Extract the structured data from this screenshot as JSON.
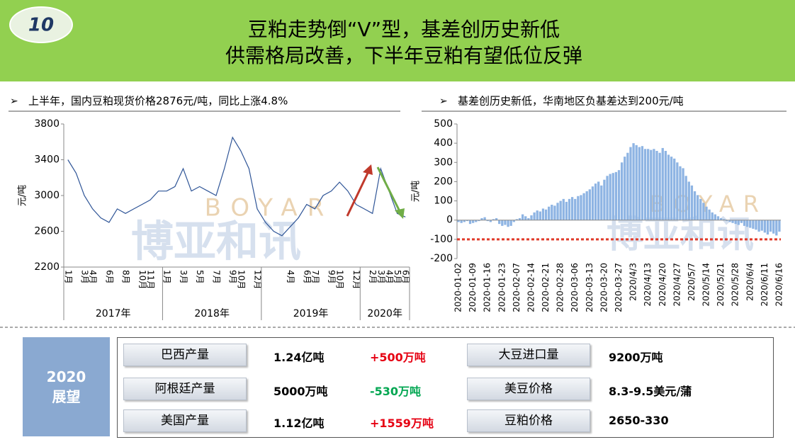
{
  "header": {
    "number": "10",
    "title_lines": [
      "豆粕走势倒“V”型，基差创历史新低",
      "供需格局改善，下半年豆粕有望低位反弹"
    ]
  },
  "watermark": {
    "name": "博亚和讯",
    "latin": "BOYAR"
  },
  "chart_data": [
    {
      "type": "line",
      "title": "上半年，国内豆粕现货价格2876元/吨，同比上涨4.8%",
      "y_label": "元/吨",
      "color": "#2f5597",
      "groups": [
        {
          "label": "2017年",
          "categories": [
            "1月",
            null,
            "3月",
            "4月",
            null,
            "6月",
            null,
            "8月",
            null,
            "10月",
            "11月",
            null
          ],
          "values": [
            3400,
            3250,
            3000,
            2850,
            2750,
            2700,
            2850,
            2800,
            2850,
            2900,
            2950,
            3050
          ]
        },
        {
          "label": "2018年",
          "categories": [
            "1月",
            null,
            "3月",
            null,
            "5月",
            null,
            "7月",
            null,
            "9月",
            "10月",
            null,
            "12月"
          ],
          "values": [
            3050,
            3100,
            3300,
            3050,
            3100,
            3050,
            3000,
            3300,
            3650,
            3500,
            3300,
            2850
          ]
        },
        {
          "label": "2019年",
          "categories": [
            null,
            null,
            null,
            "4月",
            null,
            "6月",
            "7月",
            null,
            "9月",
            "10月",
            null,
            "12月"
          ],
          "values": [
            2700,
            2600,
            2550,
            2650,
            2750,
            2900,
            2850,
            3000,
            3050,
            3150,
            3050,
            2900
          ]
        },
        {
          "label": "2020年",
          "categories": [
            null,
            "2月",
            "3月",
            "4月",
            "5月",
            "6月"
          ],
          "values": [
            2850,
            2800,
            3300,
            3050,
            2800,
            2760
          ]
        }
      ],
      "ylim": [
        2200,
        3800
      ],
      "yticks": [
        2200,
        2600,
        3000,
        3400,
        3800
      ]
    },
    {
      "type": "bar",
      "title": "基差创历史新低，华南地区负基差达到200元/吨",
      "y_label": "元/吨",
      "color": "#8eb4e3",
      "categories": [
        "2020-01-02",
        null,
        null,
        null,
        null,
        "2020-01-09",
        null,
        null,
        null,
        null,
        "2020-01-16",
        null,
        null,
        null,
        null,
        "2020-01-23",
        null,
        null,
        null,
        null,
        "2020-02-07",
        null,
        null,
        null,
        null,
        "2020-02-14",
        null,
        null,
        null,
        null,
        "2020-02-21",
        null,
        null,
        null,
        null,
        "2020-02-28",
        null,
        null,
        null,
        null,
        "2020-03-06",
        null,
        null,
        null,
        null,
        "2020-03-13",
        null,
        null,
        null,
        null,
        "2020-03-20",
        null,
        null,
        null,
        null,
        "2020-03-27",
        null,
        null,
        null,
        null,
        "2020/4/3",
        null,
        null,
        null,
        null,
        "2020/4/13",
        null,
        null,
        null,
        null,
        "2020/4/20",
        null,
        null,
        null,
        null,
        "2020/4/27",
        null,
        null,
        null,
        null,
        "2020/5/7",
        null,
        null,
        null,
        null,
        "2020/5/14",
        null,
        null,
        null,
        null,
        "2020/5/21",
        null,
        null,
        null,
        null,
        "2020/5/28",
        null,
        null,
        null,
        null,
        "2020/6/4",
        null,
        null,
        null,
        null,
        "2020/6/11",
        null,
        null,
        null,
        null,
        "2020/6/16"
      ],
      "values": [
        -10,
        -15,
        -10,
        -5,
        -20,
        -15,
        -10,
        -5,
        10,
        15,
        -5,
        -10,
        5,
        10,
        -20,
        -30,
        -25,
        -35,
        -30,
        -10,
        5,
        10,
        30,
        20,
        10,
        25,
        40,
        50,
        45,
        60,
        55,
        70,
        80,
        75,
        90,
        100,
        110,
        95,
        110,
        120,
        110,
        125,
        130,
        140,
        150,
        160,
        175,
        190,
        200,
        180,
        210,
        230,
        240,
        245,
        250,
        260,
        300,
        330,
        350,
        380,
        400,
        390,
        380,
        385,
        370,
        370,
        365,
        370,
        360,
        350,
        375,
        360,
        340,
        330,
        320,
        300,
        280,
        270,
        230,
        200,
        180,
        150,
        130,
        110,
        90,
        70,
        55,
        40,
        30,
        20,
        10,
        5,
        -5,
        -10,
        -15,
        -20,
        -25,
        -15,
        -30,
        -35,
        -40,
        -45,
        -50,
        -60,
        -55,
        -65,
        -75,
        -60,
        -70,
        -80,
        -60
      ],
      "ylim": [
        -200,
        500
      ],
      "yticks": [
        -200,
        -100,
        0,
        100,
        200,
        300,
        400,
        500
      ],
      "reference_line": {
        "value": -100,
        "color": "#e03a2a"
      }
    }
  ],
  "outlook": {
    "title": [
      "2020",
      "展望"
    ],
    "left": [
      {
        "label": "巴西产量",
        "value": "1.24亿吨",
        "change": "+500万吨",
        "change_color": "#e60012"
      },
      {
        "label": "阿根廷产量",
        "value": "5000万吨",
        "change": "-530万吨",
        "change_color": "#00a651"
      },
      {
        "label": "美国产量",
        "value": "1.12亿吨",
        "change": "+1559万吨",
        "change_color": "#e60012"
      }
    ],
    "right": [
      {
        "label": "大豆进口量",
        "value": "9200万吨"
      },
      {
        "label": "美豆价格",
        "value": "8.3-9.5美元/蒲"
      },
      {
        "label": "豆粕价格",
        "value": "2650-330"
      }
    ]
  }
}
